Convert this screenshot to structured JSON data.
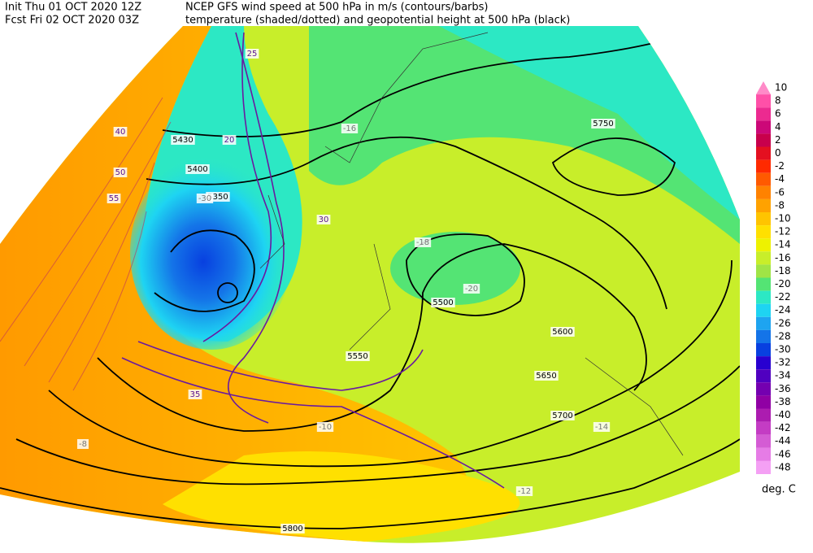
{
  "header": {
    "line1_left": "Init  Thu 01 OCT 2020 12Z",
    "line2_left": "Fcst Fri 02 OCT 2020 03Z",
    "line1_right": "NCEP GFS wind speed at 500 hPa in m/s (contours/barbs)",
    "line2_right": "temperature (shaded/dotted) and geopotential height at 500 hPa (black)"
  },
  "colorbar": {
    "unit": "deg. C",
    "entries": [
      {
        "value": 10,
        "color": "#ff8ac8"
      },
      {
        "value": 8,
        "color": "#ff50a8"
      },
      {
        "value": 6,
        "color": "#ec2a90"
      },
      {
        "value": 4,
        "color": "#cc0878"
      },
      {
        "value": 2,
        "color": "#c8004c"
      },
      {
        "value": 0,
        "color": "#e41020"
      },
      {
        "value": -2,
        "color": "#ff2a00"
      },
      {
        "value": -4,
        "color": "#ff5a00"
      },
      {
        "value": -6,
        "color": "#ff8200"
      },
      {
        "value": -8,
        "color": "#ffa200"
      },
      {
        "value": -10,
        "color": "#ffc400"
      },
      {
        "value": -12,
        "color": "#ffe000"
      },
      {
        "value": -14,
        "color": "#eef200"
      },
      {
        "value": -16,
        "color": "#c8ee2a"
      },
      {
        "value": -18,
        "color": "#a0e446"
      },
      {
        "value": -20,
        "color": "#54e474"
      },
      {
        "value": -22,
        "color": "#2ce8c4"
      },
      {
        "value": -24,
        "color": "#1ed4f2"
      },
      {
        "value": -26,
        "color": "#1ea4f0"
      },
      {
        "value": -28,
        "color": "#1474e8"
      },
      {
        "value": -30,
        "color": "#0840e0"
      },
      {
        "value": -32,
        "color": "#2800d0"
      },
      {
        "value": -34,
        "color": "#5000c0"
      },
      {
        "value": -36,
        "color": "#7400b0"
      },
      {
        "value": -38,
        "color": "#9000a4"
      },
      {
        "value": -40,
        "color": "#ac1cb0"
      },
      {
        "value": -42,
        "color": "#c43cc4"
      },
      {
        "value": -44,
        "color": "#d45cd4"
      },
      {
        "value": -46,
        "color": "#e67ce6"
      },
      {
        "value": -48,
        "color": "#f4a0f4"
      }
    ]
  },
  "map": {
    "height_labels": [
      "5430",
      "5400",
      "5350",
      "5550",
      "5500",
      "5600",
      "5650",
      "5700",
      "5750",
      "5800"
    ],
    "wind_labels": [
      "25",
      "20",
      "30",
      "40",
      "50",
      "55",
      "35"
    ],
    "temp_labels": [
      "-16",
      "-18",
      "-20",
      "-14",
      "-12",
      "-10",
      "-8",
      "-30"
    ]
  }
}
